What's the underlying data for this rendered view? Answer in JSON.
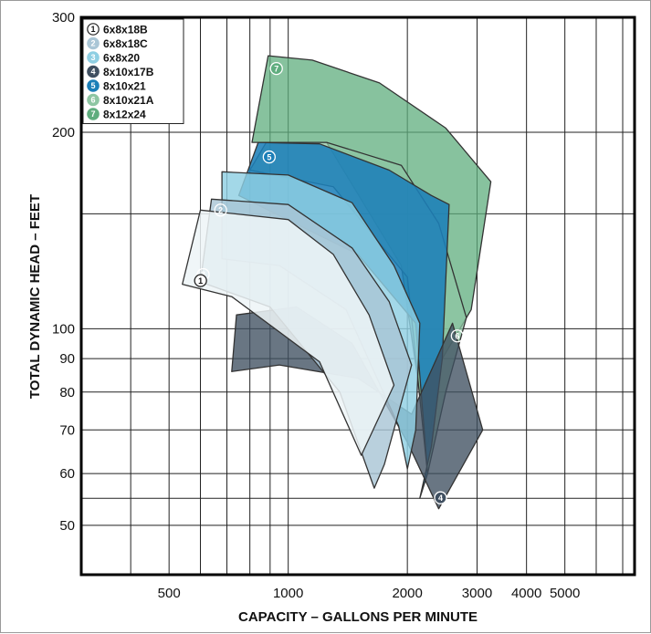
{
  "chart_data": {
    "type": "area",
    "title": "",
    "xlabel": "CAPACITY – GALLONS PER MINUTE",
    "ylabel": "TOTAL DYNAMIC HEAD – FEET",
    "x_scale": "log",
    "y_scale": "log",
    "xlim": [
      300,
      7500
    ],
    "ylim": [
      42,
      300
    ],
    "x_ticks": [
      {
        "value": 500,
        "label": "500"
      },
      {
        "value": 1000,
        "label": "1000"
      },
      {
        "value": 2000,
        "label": "2000"
      },
      {
        "value": 3000,
        "label": "3000"
      },
      {
        "value": 4000,
        "label": "4000"
      },
      {
        "value": 5000,
        "label": "5000"
      }
    ],
    "y_ticks": [
      {
        "value": 50,
        "label": "50"
      },
      {
        "value": 60,
        "label": "60"
      },
      {
        "value": 70,
        "label": "70"
      },
      {
        "value": 80,
        "label": "80"
      },
      {
        "value": 90,
        "label": "90"
      },
      {
        "value": 100,
        "label": "100"
      },
      {
        "value": 200,
        "label": "200"
      },
      {
        "value": 300,
        "label": "300"
      }
    ],
    "grid": true,
    "legend_position": "top-left",
    "series": [
      {
        "name": "8x12x24",
        "number": "7",
        "color": "#5fad7e",
        "fill_opacity": 0.75,
        "points": [
          [
            890,
            262
          ],
          [
            1150,
            258
          ],
          [
            1700,
            238
          ],
          [
            2500,
            203
          ],
          [
            3250,
            168
          ],
          [
            2900,
            107
          ],
          [
            2450,
            90
          ],
          [
            2250,
            66
          ],
          [
            1930,
            125
          ],
          [
            1250,
            193
          ],
          [
            810,
            193
          ]
        ]
      },
      {
        "name": "8x10x21A",
        "number": "6",
        "color": "#8ec6a3",
        "fill_opacity": 0.75,
        "points": [
          [
            880,
            193
          ],
          [
            1250,
            193
          ],
          [
            1930,
            178
          ],
          [
            2400,
            145
          ],
          [
            2820,
            104
          ],
          [
            2500,
            80
          ],
          [
            2250,
            60
          ],
          [
            2000,
            120
          ],
          [
            1300,
            165
          ],
          [
            800,
            175
          ]
        ]
      },
      {
        "name": "8x10x21",
        "number": "5",
        "color": "#1c7fb8",
        "fill_opacity": 0.88,
        "points": [
          [
            840,
            193
          ],
          [
            1200,
            192
          ],
          [
            1800,
            175
          ],
          [
            2300,
            160
          ],
          [
            2550,
            155
          ],
          [
            2450,
            90
          ],
          [
            2300,
            66
          ],
          [
            2150,
            55
          ],
          [
            2250,
            60
          ],
          [
            2100,
            102
          ],
          [
            1500,
            130
          ],
          [
            750,
            160
          ]
        ]
      },
      {
        "name": "8x10x17B",
        "number": "4",
        "color": "#3f4f60",
        "fill_opacity": 0.78,
        "points": [
          [
            720,
            86
          ],
          [
            950,
            88
          ],
          [
            1500,
            84
          ],
          [
            2050,
            74
          ],
          [
            2600,
            102
          ],
          [
            3100,
            70
          ],
          [
            2400,
            53
          ],
          [
            2000,
            67
          ],
          [
            1450,
            95
          ],
          [
            1050,
            108
          ],
          [
            740,
            105
          ]
        ]
      },
      {
        "name": "6x8x20",
        "number": "3",
        "color": "#8fcfe3",
        "fill_opacity": 0.82,
        "points": [
          [
            680,
            174
          ],
          [
            1000,
            172
          ],
          [
            1450,
            156
          ],
          [
            1850,
            125
          ],
          [
            2150,
            102
          ],
          [
            2100,
            70
          ],
          [
            2000,
            61
          ],
          [
            1900,
            71
          ],
          [
            1400,
            107
          ],
          [
            950,
            125
          ],
          [
            680,
            128
          ]
        ]
      },
      {
        "name": "6x8x18C",
        "number": "2",
        "color": "#aac6d6",
        "fill_opacity": 0.82,
        "points": [
          [
            640,
            158
          ],
          [
            1000,
            155
          ],
          [
            1450,
            133
          ],
          [
            1800,
            110
          ],
          [
            2050,
            88
          ],
          [
            1750,
            62
          ],
          [
            1650,
            57
          ],
          [
            1350,
            80
          ],
          [
            900,
            108
          ],
          [
            600,
            118
          ]
        ]
      },
      {
        "name": "6x8x18B",
        "number": "1",
        "color": "#eef4f7",
        "fill_opacity": 0.86,
        "points": [
          [
            600,
            152
          ],
          [
            1000,
            147
          ],
          [
            1300,
            130
          ],
          [
            1600,
            105
          ],
          [
            1850,
            82
          ],
          [
            1530,
            64
          ],
          [
            1200,
            89
          ],
          [
            720,
            112
          ],
          [
            540,
            117
          ]
        ]
      }
    ]
  }
}
